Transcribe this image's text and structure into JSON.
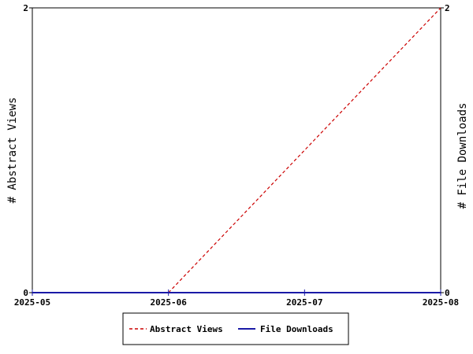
{
  "chart_data": {
    "type": "line",
    "x": [
      "2025-05",
      "2025-06",
      "2025-07",
      "2025-08"
    ],
    "xlim": [
      "2025-05",
      "2025-08"
    ],
    "ylabel_left": "# Abstract Views",
    "ylabel_right": "# File Downloads",
    "ylim_left": [
      0,
      2
    ],
    "ylim_right": [
      0,
      2
    ],
    "yticks_left": [
      "0",
      "2"
    ],
    "yticks_right": [
      "0",
      "2"
    ],
    "grid": false,
    "legend_position": "bottom-center",
    "series": [
      {
        "name": "Abstract Views",
        "axis": "left",
        "style": "dashed",
        "color": "#cc0000",
        "values": [
          null,
          0,
          1,
          2
        ]
      },
      {
        "name": "File Downloads",
        "axis": "right",
        "style": "solid",
        "color": "#1a1aa6",
        "values": [
          0,
          0,
          0,
          0
        ]
      }
    ]
  }
}
